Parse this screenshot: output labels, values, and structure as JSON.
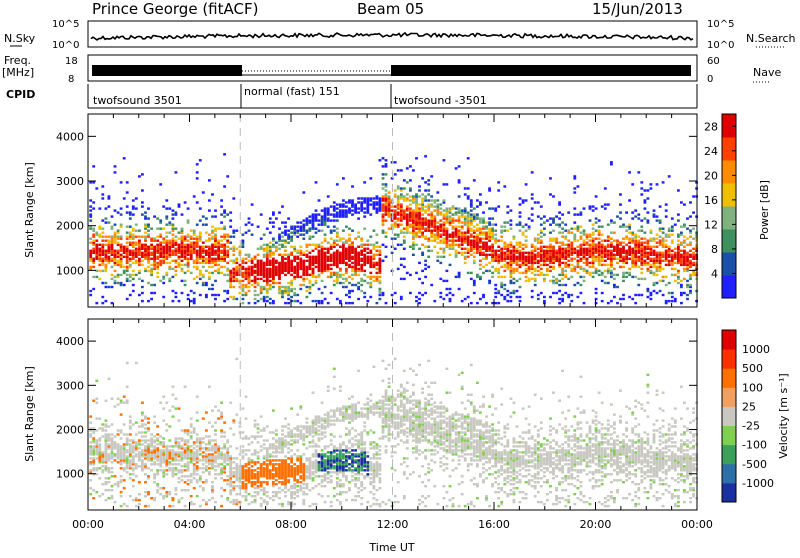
{
  "header": {
    "station": "Prince George (fitACF)",
    "beam": "Beam 05",
    "date": "15/Jun/2013"
  },
  "top_panels": {
    "nsky_label": "N.Sky",
    "nsky_ticks": [
      "10^5",
      "10^0"
    ],
    "nsearch_label": "N.Search",
    "nsearch_ticks": [
      "10^5",
      "10^0"
    ],
    "freq_label": "Freq.",
    "freq_unit": "[MHz]",
    "freq_ticks": [
      "18",
      "8"
    ],
    "nave_label": "Nave",
    "nave_ticks": [
      "60",
      "0"
    ],
    "cpid_label": "CPID",
    "cpid_segments": [
      {
        "name": "twofsound 3501",
        "start": 0,
        "end": 6
      },
      {
        "name": "normal (fast) 151",
        "start": 6,
        "end": 12
      },
      {
        "name": "twofsound -3501",
        "start": 12,
        "end": 24
      }
    ]
  },
  "chart_data": [
    {
      "type": "heatmap",
      "title": "",
      "xlabel": "",
      "ylabel": "Slant Range [km]",
      "xlim": [
        0,
        24
      ],
      "ylim": [
        180,
        4500
      ],
      "yticks": [
        "1000",
        "2000",
        "3000",
        "4000"
      ],
      "colorbar_label": "Power [dB]",
      "colorbar_ticks": [
        "4",
        "8",
        "12",
        "16",
        "20",
        "24",
        "28"
      ],
      "colorbar_range": [
        0,
        30
      ],
      "colors": [
        "#1f1fff",
        "#1c4fa8",
        "#3f8f5f",
        "#7fb27f",
        "#f0c000",
        "#ff8c00",
        "#ff4000",
        "#e00000"
      ],
      "mode_boundaries": [
        6,
        12
      ]
    },
    {
      "type": "heatmap",
      "title": "",
      "xlabel": "Time UT",
      "ylabel": "Slant Range [km]",
      "xlim": [
        0,
        24
      ],
      "ylim": [
        180,
        4500
      ],
      "yticks": [
        "1000",
        "2000",
        "3000",
        "4000"
      ],
      "xticks": [
        "00:00",
        "04:00",
        "08:00",
        "12:00",
        "16:00",
        "20:00",
        "00:00"
      ],
      "colorbar_label": "Velocity [m s⁻¹]",
      "colorbar_ticks": [
        "1000",
        "500",
        "100",
        "25",
        "-25",
        "-100",
        "-500",
        "-1000"
      ],
      "colors": [
        "#1a2fa0",
        "#2f6fa8",
        "#3aa05a",
        "#7ed04e",
        "#c8c8c0",
        "#f0a060",
        "#ff7000",
        "#ff3000",
        "#e00000"
      ],
      "mode_boundaries": [
        6,
        12
      ]
    }
  ]
}
